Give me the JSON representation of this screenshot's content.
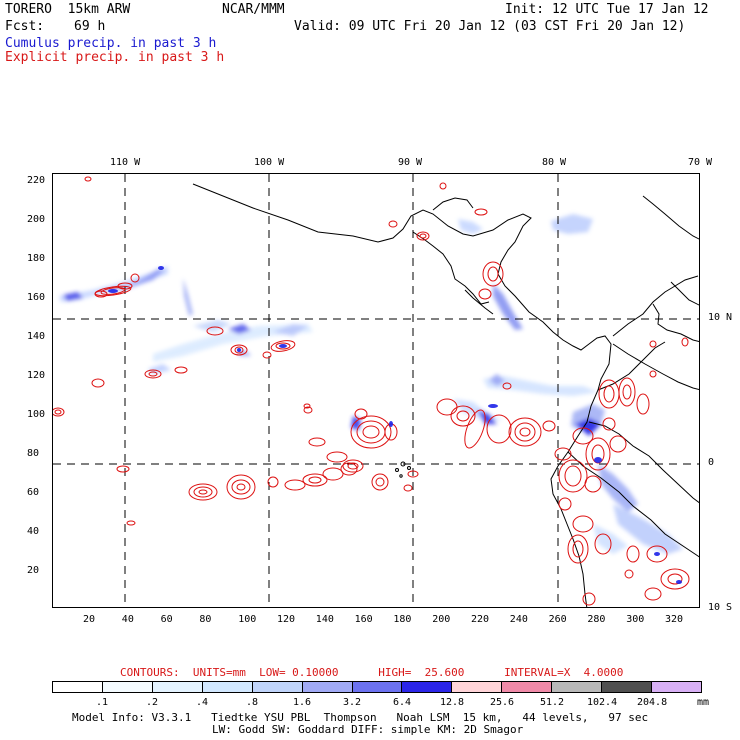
{
  "header": {
    "model": "TORERO  15km ARW",
    "org": "NCAR/MMM",
    "init": "Init: 12 UTC Tue 17 Jan 12",
    "fcst_label": "Fcst:",
    "fcst_hours": "69 h",
    "valid": "Valid: 09 UTC Fri 20 Jan 12 (03 CST Fri 20 Jan 12)",
    "field1": "Cumulus precip. in past 3 h",
    "field2": "Explicit precip. in past 3 h"
  },
  "map": {
    "top_lon_labels": [
      "110 W",
      "100 W",
      "90 W",
      "80 W",
      "70 W"
    ],
    "right_lat_labels": [
      "10 N",
      "0",
      "10 S"
    ],
    "y_ticks": [
      "220",
      "200",
      "180",
      "160",
      "140",
      "120",
      "100",
      "80",
      "60",
      "40",
      "20"
    ],
    "x_ticks": [
      "20",
      "40",
      "60",
      "80",
      "100",
      "120",
      "140",
      "160",
      "180",
      "200",
      "220",
      "240",
      "260",
      "280",
      "300",
      "320"
    ],
    "colors": {
      "contour": "#dd1111",
      "coast": "#000000",
      "blue_light": "#cfe2ff",
      "blue_mid": "#7a8cf5",
      "blue_dark": "#1c22e8"
    }
  },
  "legend": {
    "contours_text": "CONTOURS:  UNITS=mm  LOW= 0.10000      HIGH=  25.600      INTERVAL=X  4.0000",
    "colorbar_labels": [
      ".1",
      ".2",
      ".4",
      ".8",
      "1.6",
      "3.2",
      "6.4",
      "12.8",
      "25.6",
      "51.2",
      "102.4",
      "204.8"
    ],
    "colorbar_unit": "mm",
    "colorbar_colors": [
      "#ffffff",
      "#f4fbff",
      "#e4f3ff",
      "#d2e8ff",
      "#c0d4fa",
      "#a1aaf5",
      "#6c72f0",
      "#2b25e8",
      "#ffd4d8",
      "#f08aa8",
      "#b8b8b8",
      "#505050",
      "#d8b0f5"
    ]
  },
  "footer": {
    "line1": "Model Info: V3.3.1   Tiedtke YSU PBL  Thompson   Noah LSM  15 km,   44 levels,   97 sec",
    "line2": "LW: Godd SW: Goddard DIFF: simple KM: 2D Smagor"
  }
}
